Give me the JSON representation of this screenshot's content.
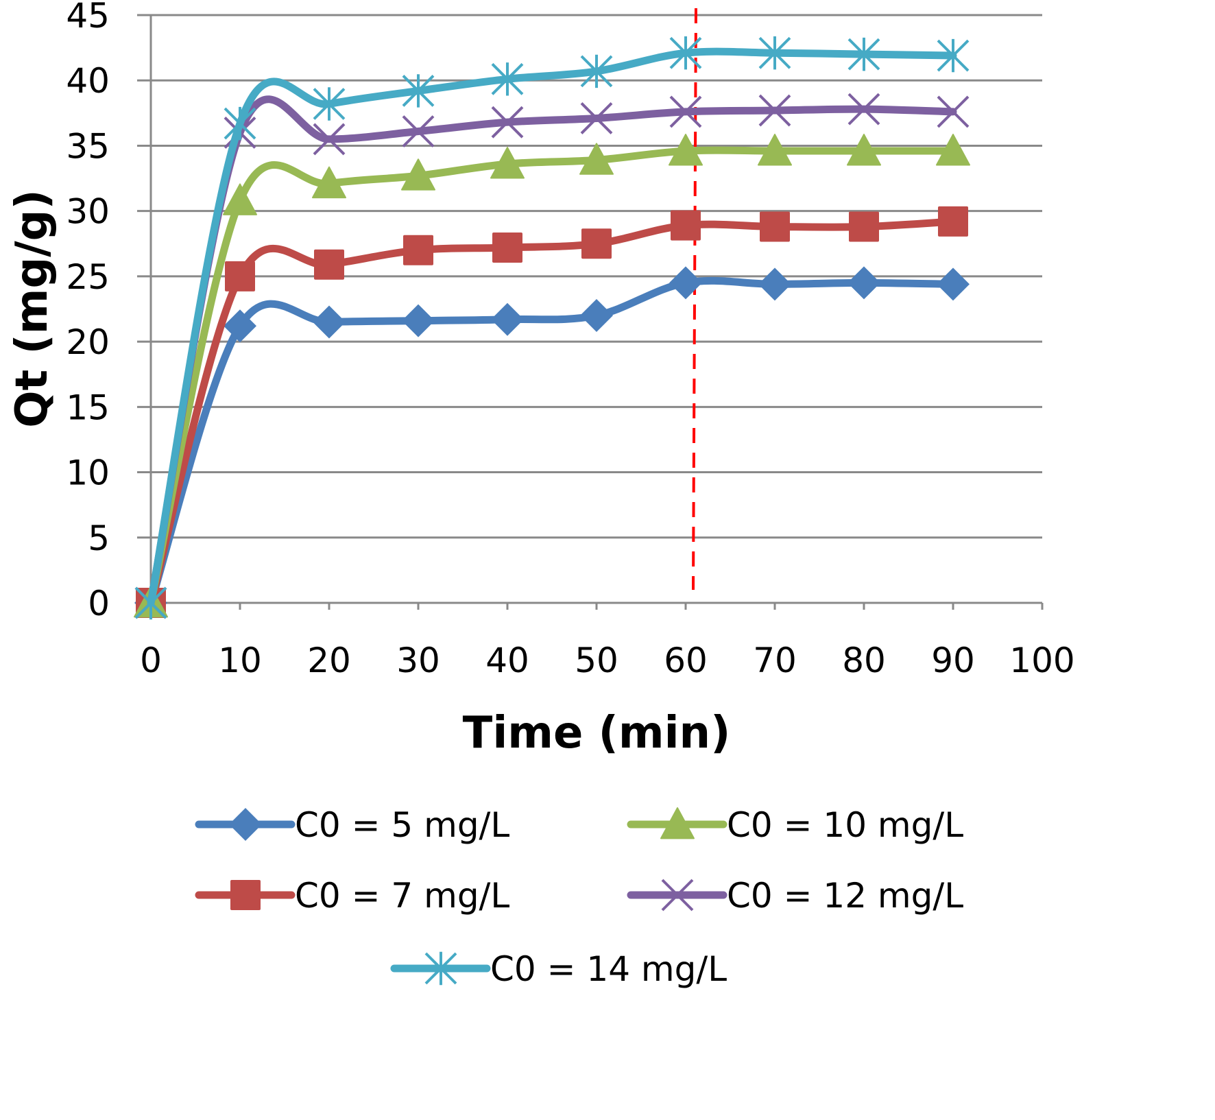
{
  "chart_data": {
    "type": "line",
    "title": "",
    "xlabel": "Time (min)",
    "ylabel": "Qt (mg/g)",
    "xlim": [
      0,
      100
    ],
    "ylim": [
      0,
      45
    ],
    "xticks": [
      0,
      10,
      20,
      30,
      40,
      50,
      60,
      70,
      80,
      90,
      100
    ],
    "yticks": [
      0,
      5,
      10,
      15,
      20,
      25,
      30,
      35,
      40,
      45
    ],
    "grid": "horizontal",
    "smooth": true,
    "legend_position": "bottom",
    "x": [
      0,
      10,
      20,
      30,
      40,
      50,
      60,
      70,
      80,
      90
    ],
    "series": [
      {
        "name": "C0 = 5 mg/L",
        "color": "#4a7ebb",
        "marker": "diamond",
        "values": [
          0,
          21.2,
          21.5,
          21.6,
          21.7,
          22.0,
          24.5,
          24.4,
          24.5,
          24.4
        ]
      },
      {
        "name": "C0 = 7 mg/L",
        "color": "#be4b48",
        "marker": "square",
        "values": [
          0,
          25.0,
          25.9,
          27.0,
          27.2,
          27.5,
          28.9,
          28.8,
          28.8,
          29.2
        ]
      },
      {
        "name": "C0 = 10 mg/L",
        "color": "#98b954",
        "marker": "triangle",
        "values": [
          0,
          30.8,
          32.1,
          32.7,
          33.6,
          33.9,
          34.6,
          34.6,
          34.6,
          34.6
        ]
      },
      {
        "name": "C0 = 12 mg/L",
        "color": "#7d60a0",
        "marker": "x",
        "values": [
          0,
          36.0,
          35.5,
          36.1,
          36.8,
          37.1,
          37.6,
          37.7,
          37.8,
          37.6
        ]
      },
      {
        "name": "C0 = 14 mg/L",
        "color": "#46aac5",
        "marker": "star",
        "values": [
          0,
          36.7,
          38.2,
          39.2,
          40.1,
          40.7,
          42.1,
          42.1,
          42.0,
          41.9
        ]
      }
    ],
    "annotations": [
      {
        "type": "vertical-dashed-line",
        "x": 61,
        "color": "#ff0000"
      }
    ],
    "legend_order": [
      0,
      2,
      1,
      3,
      4
    ]
  }
}
